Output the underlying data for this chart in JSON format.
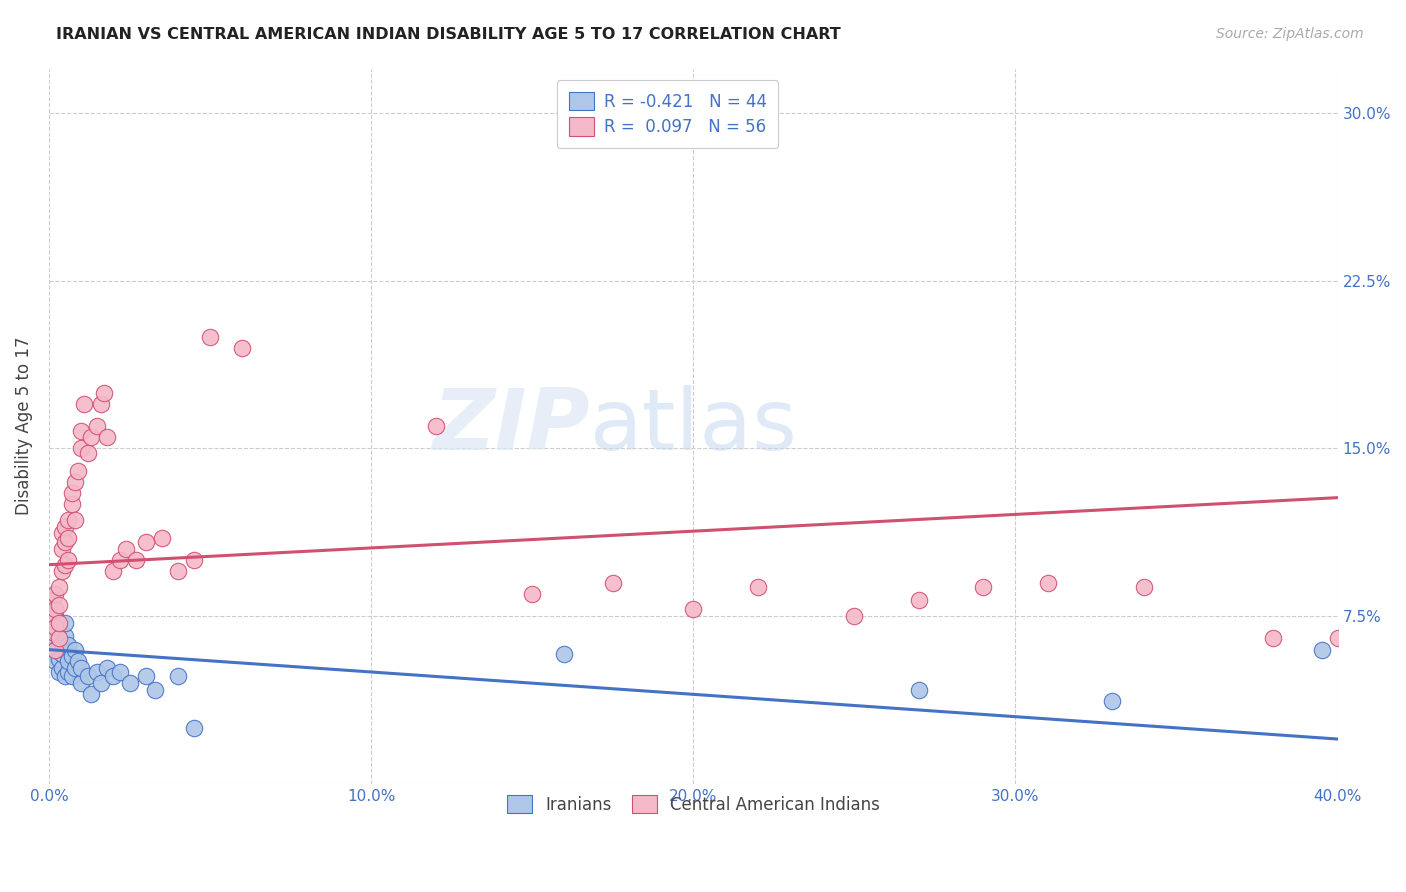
{
  "title": "IRANIAN VS CENTRAL AMERICAN INDIAN DISABILITY AGE 5 TO 17 CORRELATION CHART",
  "source": "Source: ZipAtlas.com",
  "ylabel": "Disability Age 5 to 17",
  "xlim": [
    0.0,
    0.4
  ],
  "ylim": [
    0.0,
    0.32
  ],
  "xticks": [
    0.0,
    0.1,
    0.2,
    0.3,
    0.4
  ],
  "xticklabels": [
    "0.0%",
    "10.0%",
    "20.0%",
    "30.0%",
    "40.0%"
  ],
  "yticks": [
    0.0,
    0.075,
    0.15,
    0.225,
    0.3
  ],
  "yticklabels_right": [
    "",
    "7.5%",
    "15.0%",
    "22.5%",
    "30.0%"
  ],
  "legend_label1": "Iranians",
  "legend_label2": "Central American Indians",
  "R1": -0.421,
  "N1": 44,
  "R2": 0.097,
  "N2": 56,
  "color1": "#aec6e8",
  "color2": "#f4b8c8",
  "line_color1": "#4472c4",
  "line_color2": "#d05070",
  "watermark": "ZIPatlas",
  "iranians_x": [
    0.001,
    0.001,
    0.001,
    0.002,
    0.002,
    0.002,
    0.002,
    0.003,
    0.003,
    0.003,
    0.003,
    0.004,
    0.004,
    0.004,
    0.005,
    0.005,
    0.005,
    0.005,
    0.006,
    0.006,
    0.006,
    0.007,
    0.007,
    0.008,
    0.008,
    0.009,
    0.01,
    0.01,
    0.012,
    0.013,
    0.015,
    0.016,
    0.018,
    0.02,
    0.022,
    0.025,
    0.03,
    0.033,
    0.04,
    0.045,
    0.16,
    0.27,
    0.33,
    0.395
  ],
  "iranians_y": [
    0.065,
    0.058,
    0.072,
    0.06,
    0.055,
    0.068,
    0.075,
    0.05,
    0.062,
    0.056,
    0.07,
    0.052,
    0.063,
    0.058,
    0.048,
    0.06,
    0.066,
    0.072,
    0.05,
    0.055,
    0.062,
    0.048,
    0.057,
    0.052,
    0.06,
    0.055,
    0.045,
    0.052,
    0.048,
    0.04,
    0.05,
    0.045,
    0.052,
    0.048,
    0.05,
    0.045,
    0.048,
    0.042,
    0.048,
    0.025,
    0.058,
    0.042,
    0.037,
    0.06
  ],
  "central_x": [
    0.001,
    0.001,
    0.001,
    0.002,
    0.002,
    0.002,
    0.002,
    0.003,
    0.003,
    0.003,
    0.003,
    0.004,
    0.004,
    0.004,
    0.005,
    0.005,
    0.005,
    0.006,
    0.006,
    0.006,
    0.007,
    0.007,
    0.008,
    0.008,
    0.009,
    0.01,
    0.01,
    0.011,
    0.012,
    0.013,
    0.015,
    0.016,
    0.017,
    0.018,
    0.02,
    0.022,
    0.024,
    0.027,
    0.03,
    0.035,
    0.04,
    0.045,
    0.05,
    0.06,
    0.12,
    0.15,
    0.175,
    0.2,
    0.22,
    0.25,
    0.27,
    0.29,
    0.31,
    0.34,
    0.38,
    0.4
  ],
  "central_y": [
    0.075,
    0.082,
    0.068,
    0.078,
    0.06,
    0.07,
    0.085,
    0.065,
    0.072,
    0.08,
    0.088,
    0.095,
    0.105,
    0.112,
    0.098,
    0.108,
    0.115,
    0.1,
    0.11,
    0.118,
    0.125,
    0.13,
    0.118,
    0.135,
    0.14,
    0.15,
    0.158,
    0.17,
    0.148,
    0.155,
    0.16,
    0.17,
    0.175,
    0.155,
    0.095,
    0.1,
    0.105,
    0.1,
    0.108,
    0.11,
    0.095,
    0.1,
    0.2,
    0.195,
    0.16,
    0.085,
    0.09,
    0.078,
    0.088,
    0.075,
    0.082,
    0.088,
    0.09,
    0.088,
    0.065,
    0.065
  ],
  "blue_line_x": [
    0.0,
    0.4
  ],
  "blue_line_y": [
    0.06,
    0.02
  ],
  "pink_line_x": [
    0.0,
    0.4
  ],
  "pink_line_y": [
    0.098,
    0.128
  ]
}
